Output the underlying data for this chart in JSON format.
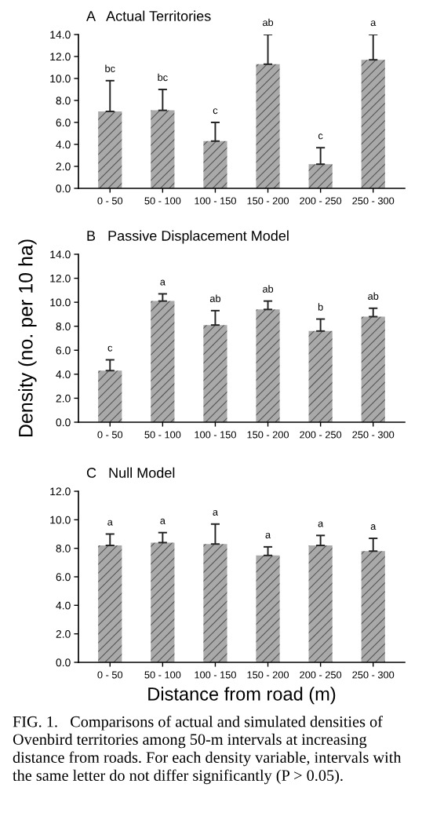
{
  "chart_data": [
    {
      "type": "bar",
      "title": "A   Actual Territories",
      "categories": [
        "0 - 50",
        "50 - 100",
        "100 - 150",
        "150 - 200",
        "200 - 250",
        "250 - 300"
      ],
      "values": [
        7.0,
        7.1,
        4.3,
        11.3,
        2.2,
        11.7
      ],
      "errors": [
        [
          7.0,
          9.8
        ],
        [
          7.1,
          9.0
        ],
        [
          4.3,
          6.0
        ],
        [
          11.3,
          14.0
        ],
        [
          2.2,
          3.7
        ],
        [
          11.7,
          14.0
        ]
      ],
      "color": "#a9a9a9",
      "ylim": [
        0,
        14
      ],
      "yticks": [
        {
          "value": 0,
          "label": "0.0"
        },
        {
          "value": 2,
          "label": "2.0"
        },
        {
          "value": 4,
          "label": "4.0"
        },
        {
          "value": 6,
          "label": "6.0"
        },
        {
          "value": 8,
          "label": "8.0"
        },
        {
          "value": 10,
          "label": "10.0"
        },
        {
          "value": 12,
          "label": "12.0"
        },
        {
          "value": 14,
          "label": "14.0"
        }
      ],
      "annotations": [
        {
          "text": "bc",
          "x": "0 - 50",
          "y": 9.8
        },
        {
          "text": "bc",
          "x": "50 - 100",
          "y": 9.0
        },
        {
          "text": "c",
          "x": "100 - 150",
          "y": 6.0
        },
        {
          "text": "ab",
          "x": "150 - 200",
          "y": 14.0
        },
        {
          "text": "c",
          "x": "200 - 250",
          "y": 3.7
        },
        {
          "text": "a",
          "x": "250 - 300",
          "y": 14.0
        }
      ]
    },
    {
      "type": "bar",
      "title": "B   Passive Displacement Model",
      "ylabel": "Density (no. per 10 ha)",
      "categories": [
        "0 - 50",
        "50 - 100",
        "100 - 150",
        "150 - 200",
        "200 - 250",
        "250 - 300"
      ],
      "values": [
        4.3,
        10.1,
        8.1,
        9.4,
        7.6,
        8.8
      ],
      "errors": [
        [
          4.3,
          5.2
        ],
        [
          10.1,
          10.7
        ],
        [
          8.1,
          9.3
        ],
        [
          9.4,
          10.1
        ],
        [
          7.6,
          8.6
        ],
        [
          8.8,
          9.5
        ]
      ],
      "color": "#a9a9a9",
      "ylim": [
        0,
        14
      ],
      "yticks": [
        {
          "value": 0,
          "label": "0.0"
        },
        {
          "value": 2,
          "label": "2.0"
        },
        {
          "value": 4,
          "label": "4.0"
        },
        {
          "value": 6,
          "label": "6.0"
        },
        {
          "value": 8,
          "label": "8.0"
        },
        {
          "value": 10,
          "label": "10.0"
        },
        {
          "value": 12,
          "label": "12.0"
        },
        {
          "value": 14,
          "label": "14.0"
        }
      ],
      "annotations": [
        {
          "text": "c",
          "x": "0 - 50",
          "y": 5.2
        },
        {
          "text": "a",
          "x": "50 - 100",
          "y": 10.7
        },
        {
          "text": "ab",
          "x": "100 - 150",
          "y": 9.3
        },
        {
          "text": "ab",
          "x": "150 - 200",
          "y": 10.1
        },
        {
          "text": "b",
          "x": "200 - 250",
          "y": 8.6
        },
        {
          "text": "ab",
          "x": "250 - 300",
          "y": 9.5
        }
      ]
    },
    {
      "type": "bar",
      "title": "C   Null Model",
      "xlabel": "Distance from road (m)",
      "categories": [
        "0 - 50",
        "50 - 100",
        "100 - 150",
        "150 - 200",
        "200 - 250",
        "250 - 300"
      ],
      "values": [
        8.2,
        8.4,
        8.3,
        7.5,
        8.2,
        7.8
      ],
      "errors": [
        [
          8.2,
          9.0
        ],
        [
          8.4,
          9.1
        ],
        [
          8.3,
          9.7
        ],
        [
          7.5,
          8.1
        ],
        [
          8.2,
          8.9
        ],
        [
          7.8,
          8.7
        ]
      ],
      "color": "#a9a9a9",
      "ylim": [
        0,
        12
      ],
      "yticks": [
        {
          "value": 0,
          "label": "0.0"
        },
        {
          "value": 2,
          "label": "2.0"
        },
        {
          "value": 4,
          "label": "4.0"
        },
        {
          "value": 6,
          "label": "6.0"
        },
        {
          "value": 8,
          "label": "8.0"
        },
        {
          "value": 10,
          "label": "10.0"
        },
        {
          "value": 12,
          "label": "12.0"
        }
      ],
      "annotations": [
        {
          "text": "a",
          "x": "0 - 50",
          "y": 9.0
        },
        {
          "text": "a",
          "x": "50 - 100",
          "y": 9.1
        },
        {
          "text": "a",
          "x": "100 - 150",
          "y": 9.7
        },
        {
          "text": "a",
          "x": "150 - 200",
          "y": 8.1
        },
        {
          "text": "a",
          "x": "200 - 250",
          "y": 8.9
        },
        {
          "text": "a",
          "x": "250 - 300",
          "y": 8.7
        },
        "FIG. 1.   Comparisons of actual and simulated densities of Ovenbird territories among 50-m intervals at increasing distance from roads. For each density variable, intervals with the same letter do not differ significantly (P > 0.05)."
      ]
    }
  ]
}
